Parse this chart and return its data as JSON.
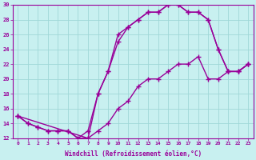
{
  "xlabel": "Windchill (Refroidissement éolien,°C)",
  "bg_color": "#c8f0f0",
  "grid_color": "#a0d8d8",
  "line_color": "#990099",
  "xlim": [
    -0.5,
    23.5
  ],
  "ylim": [
    12,
    30
  ],
  "xticks": [
    0,
    1,
    2,
    3,
    4,
    5,
    6,
    7,
    8,
    9,
    10,
    11,
    12,
    13,
    14,
    15,
    16,
    17,
    18,
    19,
    20,
    21,
    22,
    23
  ],
  "yticks": [
    12,
    14,
    16,
    18,
    20,
    22,
    24,
    26,
    28,
    30
  ],
  "line1_x": [
    0,
    1,
    2,
    3,
    4,
    5,
    6,
    7,
    8,
    9,
    10,
    11,
    12,
    13,
    14,
    15,
    16,
    17,
    18,
    19,
    20,
    21,
    22,
    23
  ],
  "line1_y": [
    15,
    14,
    13.5,
    13,
    13,
    13,
    12,
    13,
    18,
    21,
    25,
    27,
    28,
    29,
    29,
    30,
    30,
    29,
    29,
    28,
    24,
    21,
    21,
    22
  ],
  "line2_x": [
    0,
    1,
    2,
    3,
    4,
    5,
    6,
    7,
    8,
    9,
    10,
    11,
    12,
    13,
    14,
    15,
    16,
    17,
    18,
    19,
    20,
    21,
    22,
    23
  ],
  "line2_y": [
    15,
    14,
    13.5,
    13,
    13,
    13,
    12,
    12,
    13,
    14,
    16,
    17,
    19,
    20,
    20,
    21,
    22,
    22,
    23,
    20,
    20,
    21,
    21,
    22
  ],
  "line3_x": [
    0,
    7,
    8,
    9,
    10,
    11,
    12,
    13,
    14,
    15,
    16,
    17,
    18,
    19,
    20,
    21,
    22,
    23
  ],
  "line3_y": [
    15,
    12,
    18,
    21,
    26,
    27,
    28,
    29,
    29,
    30,
    30,
    29,
    29,
    28,
    24,
    21,
    21,
    22
  ],
  "marker": "+",
  "markersize": 4,
  "linewidth": 1.0
}
